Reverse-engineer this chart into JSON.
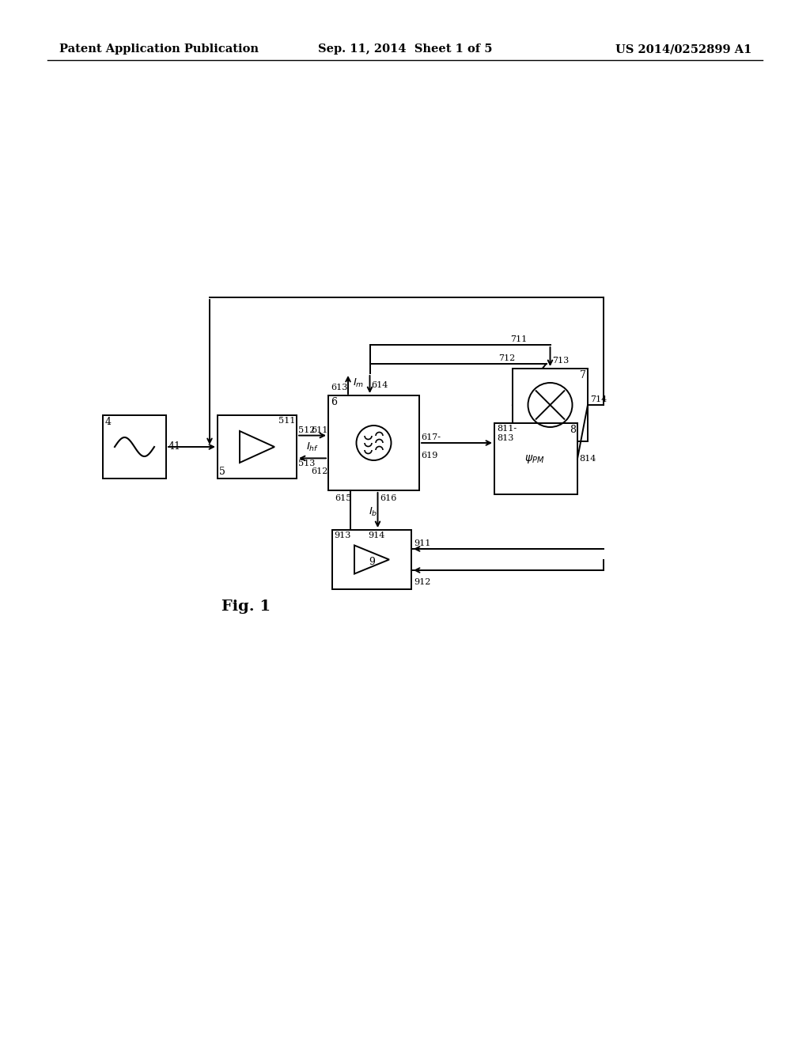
{
  "title_left": "Patent Application Publication",
  "title_mid": "Sep. 11, 2014  Sheet 1 of 5",
  "title_right": "US 2014/0252899 A1",
  "fig_label": "Fig. 1",
  "bg_color": "#ffffff",
  "line_color": "#000000",
  "font_size_title": 10.5,
  "font_size_label": 8.5,
  "font_size_number": 9,
  "font_size_fig": 14
}
